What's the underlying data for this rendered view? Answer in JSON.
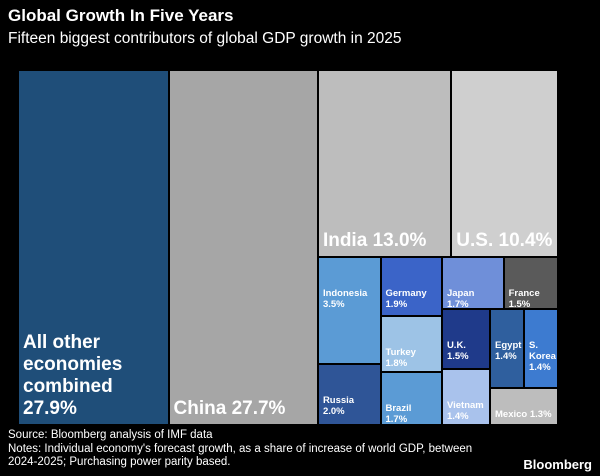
{
  "chart_data": {
    "type": "treemap",
    "title": "Global Growth In Five Years",
    "subtitle": "Fifteen biggest contributors of global GDP growth in 2025",
    "categories": [
      "All other economies combined",
      "China",
      "India",
      "U.S.",
      "Indonesia",
      "Russia",
      "Germany",
      "Turkey",
      "Brazil",
      "Japan",
      "U.K.",
      "Vietnam",
      "France",
      "Egypt",
      "S. Korea",
      "Mexico"
    ],
    "values": [
      27.9,
      27.7,
      13.0,
      10.4,
      3.5,
      2.0,
      1.9,
      1.8,
      1.7,
      1.7,
      1.5,
      1.4,
      1.5,
      1.4,
      1.4,
      1.3
    ],
    "value_labels": [
      "27.9%",
      "27.7%",
      "13.0%",
      "10.4%",
      "3.5%",
      "2.0%",
      "1.9%",
      "1.8%",
      "1.7%",
      "1.7%",
      "1.5%",
      "1.4%",
      "1.5%",
      "1.4%",
      "1.4%",
      "1.3%"
    ],
    "colors": [
      "#1f4e79",
      "#a6a6a6",
      "#bdbdbd",
      "#cfcfcf",
      "#5b9bd5",
      "#2f5597",
      "#3b64c8",
      "#9dc3e6",
      "#5b9bd5",
      "#6f8fd9",
      "#1f3a8a",
      "#a9c2ec",
      "#5a5a5a",
      "#2f5f9e",
      "#3d7bd0",
      "#bdbdbd"
    ],
    "source": "Source: Bloomberg analysis of IMF data",
    "notes": "Notes: Individual economy's forecast growth, as a share of increase of world GDP, between 2024-2025; Purchasing power parity based.",
    "credit": "Bloomberg"
  }
}
